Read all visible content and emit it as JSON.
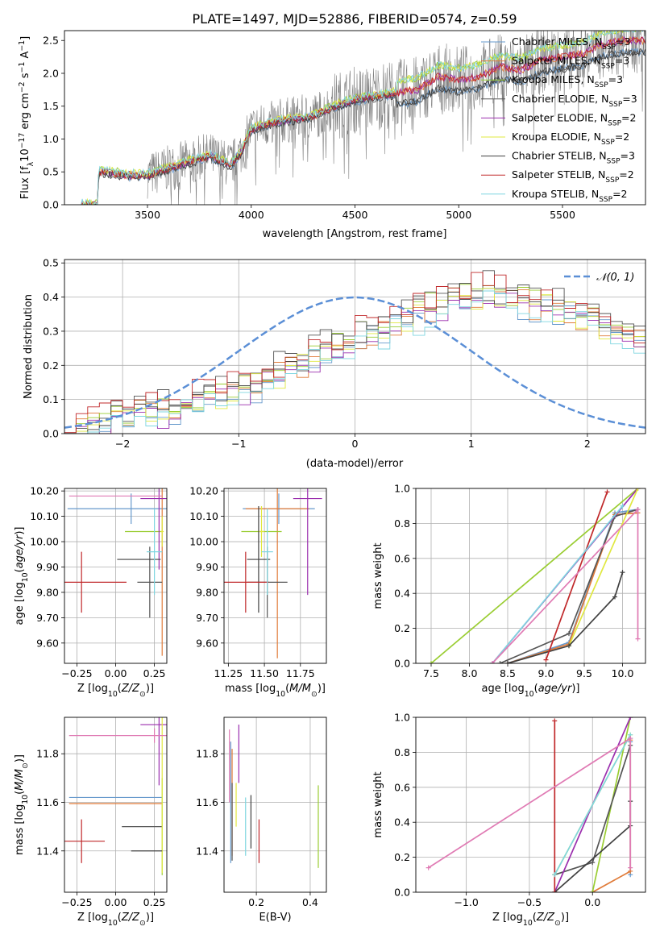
{
  "figure": {
    "title": "PLATE=1497, MJD=52886, FIBERID=0574, z=0.59"
  },
  "colors": {
    "grid": "#b0b0b0",
    "data_gray": "#808080",
    "normal_curve": "#5b8fd6",
    "models": [
      "#6699cc",
      "#e07b39",
      "#9acd32",
      "#555555",
      "#9b2fae",
      "#e0e840",
      "#404040",
      "#c0282a",
      "#7fd6e0"
    ]
  },
  "legend_spectrum": [
    {
      "label": "Chabrier MILES, N",
      "sub": "SSP",
      "tail": "=3",
      "color": "#6699cc"
    },
    {
      "label": "Salpeter MILES, N",
      "sub": "SSP",
      "tail": "=3",
      "color": "#e07b39"
    },
    {
      "label": "Kroupa MILES, N",
      "sub": "SSP",
      "tail": "=3",
      "color": "#9acd32"
    },
    {
      "label": "Chabrier ELODIE, N",
      "sub": "SSP",
      "tail": "=3",
      "color": "#555555"
    },
    {
      "label": "Salpeter ELODIE, N",
      "sub": "SSP",
      "tail": "=2",
      "color": "#9b2fae"
    },
    {
      "label": "Kroupa ELODIE, N",
      "sub": "SSP",
      "tail": "=2",
      "color": "#e0e840"
    },
    {
      "label": "Chabrier STELIB, N",
      "sub": "SSP",
      "tail": "=3",
      "color": "#404040"
    },
    {
      "label": "Salpeter STELIB, N",
      "sub": "SSP",
      "tail": "=2",
      "color": "#c0282a"
    },
    {
      "label": "Kroupa STELIB, N",
      "sub": "SSP",
      "tail": "=2",
      "color": "#7fd6e0"
    }
  ],
  "legend_hist": {
    "label": "𝒩(0, 1)"
  },
  "chart_data": [
    {
      "id": "spectrum",
      "type": "line",
      "title": "PLATE=1497, MJD=52886, FIBERID=0574, z=0.59",
      "xlabel": "wavelength [Angstrom, rest frame]",
      "ylabel": "Flux [fλ10⁻¹⁷ erg cm⁻² s⁻¹ A⁻¹]",
      "xlim": [
        3100,
        5900
      ],
      "ylim": [
        0,
        2.65
      ],
      "xticks": [
        3500,
        4000,
        4500,
        5000,
        5500
      ],
      "yticks": [
        0.0,
        0.5,
        1.0,
        1.5,
        2.0,
        2.5
      ],
      "grid": false,
      "legend_placement": "right",
      "data_start": 3500,
      "model_start": 3180,
      "continuum_points": [
        [
          3180,
          0
        ],
        [
          3260,
          0
        ],
        [
          3265,
          0.5
        ],
        [
          3300,
          0.5
        ],
        [
          3400,
          0.45
        ],
        [
          3500,
          0.45
        ],
        [
          3600,
          0.55
        ],
        [
          3700,
          0.65
        ],
        [
          3800,
          0.75
        ],
        [
          3900,
          0.6
        ],
        [
          3950,
          0.8
        ],
        [
          4000,
          1.15
        ],
        [
          4100,
          1.25
        ],
        [
          4200,
          1.3
        ],
        [
          4300,
          1.35
        ],
        [
          4400,
          1.5
        ],
        [
          4500,
          1.6
        ],
        [
          4600,
          1.65
        ],
        [
          4700,
          1.7
        ],
        [
          4800,
          1.75
        ],
        [
          4900,
          1.95
        ],
        [
          5000,
          1.9
        ],
        [
          5100,
          1.95
        ],
        [
          5200,
          2.1
        ],
        [
          5300,
          2.05
        ],
        [
          5400,
          2.2
        ],
        [
          5500,
          2.25
        ],
        [
          5600,
          2.3
        ],
        [
          5700,
          2.45
        ],
        [
          5800,
          2.5
        ]
      ]
    },
    {
      "id": "residual-hist",
      "type": "bar",
      "xlabel": "(data-model)/error",
      "ylabel": "Normed distribution",
      "xlim": [
        -2.5,
        2.5
      ],
      "ylim": [
        0,
        0.51
      ],
      "xticks": [
        -2,
        -1,
        0,
        1,
        2
      ],
      "yticks": [
        0.0,
        0.1,
        0.2,
        0.3,
        0.4,
        0.5
      ],
      "grid": true,
      "legend_placement": "top-right",
      "bin_width": 0.1,
      "bin_start": -2.5,
      "normal": {
        "mean": 0,
        "sigma": 1
      },
      "bin_values": [
        0.02,
        0.02,
        0.03,
        0.03,
        0.04,
        0.05,
        0.06,
        0.06,
        0.07,
        0.08,
        0.09,
        0.1,
        0.11,
        0.12,
        0.13,
        0.14,
        0.15,
        0.17,
        0.18,
        0.2,
        0.21,
        0.23,
        0.25,
        0.26,
        0.28,
        0.29,
        0.3,
        0.31,
        0.33,
        0.34,
        0.35,
        0.37,
        0.38,
        0.39,
        0.4,
        0.41,
        0.42,
        0.41,
        0.4,
        0.39,
        0.38,
        0.38,
        0.37,
        0.36,
        0.35,
        0.33,
        0.32,
        0.31,
        0.3,
        0.28,
        0.27,
        0.26,
        0.25,
        0.24,
        0.22,
        0.21,
        0.2,
        0.18,
        0.16,
        0.15,
        0.14,
        0.13,
        0.12,
        0.11,
        0.1,
        0.09,
        0.08,
        0.07,
        0.06,
        0.05,
        0.04,
        0.04,
        0.03,
        0.03,
        0.02
      ]
    },
    {
      "id": "age-vs-Z",
      "type": "scatter",
      "xlabel": "Z [log10(Z/Z⊙)]",
      "ylabel": "age  [log10(age/yr)]",
      "xlim": [
        -0.33,
        0.33
      ],
      "ylim": [
        9.52,
        10.21
      ],
      "xticks": [
        -0.25,
        0.0,
        0.25
      ],
      "yticks": [
        9.6,
        9.7,
        9.8,
        9.9,
        10.0,
        10.1,
        10.2
      ],
      "grid": true,
      "points": [
        {
          "x": 0.1,
          "y": 10.13,
          "xerr": 0.41,
          "yerr": 0.06,
          "c": 0
        },
        {
          "x": 0.3,
          "y": 10.17,
          "xerr": 0.01,
          "yerr": 0.62,
          "c": 1
        },
        {
          "x": 0.18,
          "y": 10.04,
          "xerr": 0.12,
          "yerr": 0.0,
          "c": 2
        },
        {
          "x": 0.22,
          "y": 9.84,
          "xerr": 0.08,
          "yerr": 0.14,
          "c": 3
        },
        {
          "x": 0.28,
          "y": 10.17,
          "xerr": 0.12,
          "yerr": 0.28,
          "c": 4
        },
        {
          "x": 0.3,
          "y": 10.04,
          "xerr": 0.01,
          "yerr": 0.06,
          "c": 5
        },
        {
          "x": 0.15,
          "y": 9.93,
          "xerr": 0.14,
          "yerr": 0.0,
          "c": 6
        },
        {
          "x": -0.22,
          "y": 9.84,
          "xerr": 0.29,
          "yerr": 0.12,
          "c": 7
        },
        {
          "x": 0.25,
          "y": 9.96,
          "xerr": 0.05,
          "yerr": 0.17,
          "c": 8
        },
        {
          "x": 0.0,
          "y": 10.18,
          "xerr": 0.3,
          "yerr": 0.0,
          "c": 9
        }
      ]
    },
    {
      "id": "age-vs-mass",
      "type": "scatter",
      "xlabel": "mass [log10(M/M⊙)]",
      "ylabel": "",
      "xlim": [
        11.22,
        11.93
      ],
      "ylim": [
        9.52,
        10.21
      ],
      "xticks": [
        11.25,
        11.5,
        11.75
      ],
      "yticks": [
        9.6,
        9.7,
        9.8,
        9.9,
        10.0,
        10.1,
        10.2
      ],
      "grid": true,
      "points": [
        {
          "x": 11.6,
          "y": 10.13,
          "xerr": 0.25,
          "yerr": 0.06,
          "c": 0
        },
        {
          "x": 11.59,
          "y": 10.13,
          "xerr": 0.22,
          "yerr": 0.59,
          "c": 1
        },
        {
          "x": 11.48,
          "y": 10.04,
          "xerr": 0.14,
          "yerr": 0.0,
          "c": 2
        },
        {
          "x": 11.52,
          "y": 9.84,
          "xerr": 0.14,
          "yerr": 0.14,
          "c": 3
        },
        {
          "x": 11.8,
          "y": 10.17,
          "xerr": 0.1,
          "yerr": 0.38,
          "c": 4
        },
        {
          "x": 11.48,
          "y": 10.04,
          "xerr": 0.02,
          "yerr": 0.1,
          "c": 5
        },
        {
          "x": 11.46,
          "y": 9.93,
          "xerr": 0.08,
          "yerr": 0.21,
          "c": 6
        },
        {
          "x": 11.37,
          "y": 9.84,
          "xerr": 0.16,
          "yerr": 0.12,
          "c": 7
        },
        {
          "x": 11.52,
          "y": 9.96,
          "xerr": 0.04,
          "yerr": 0.17,
          "c": 8
        }
      ]
    },
    {
      "id": "mass-weight-vs-age",
      "type": "line",
      "xlabel": "age  [log10(age/yr)]",
      "ylabel": "mass weight",
      "xlim": [
        7.3,
        10.3
      ],
      "ylim": [
        0,
        1
      ],
      "xticks": [
        7.5,
        8.0,
        8.5,
        9.0,
        9.5,
        10.0
      ],
      "yticks": [
        0.0,
        0.2,
        0.4,
        0.6,
        0.8,
        1.0
      ],
      "grid": true,
      "series": [
        {
          "c": 0,
          "x": [
            8.5,
            9.3,
            9.9,
            10.2
          ],
          "y": [
            0.0,
            0.12,
            0.86,
            0.88
          ]
        },
        {
          "c": 1,
          "x": [
            8.5,
            9.3,
            9.9,
            10.2
          ],
          "y": [
            0.0,
            0.11,
            0.85,
            0.86
          ]
        },
        {
          "c": 2,
          "x": [
            7.5,
            10.2
          ],
          "y": [
            0.0,
            1.0
          ]
        },
        {
          "c": 3,
          "x": [
            8.4,
            9.3,
            9.9,
            10.2
          ],
          "y": [
            0.0,
            0.17,
            0.84,
            0.88
          ]
        },
        {
          "c": 4,
          "x": [
            8.3,
            10.2
          ],
          "y": [
            0.0,
            1.0
          ]
        },
        {
          "c": 5,
          "x": [
            9.3,
            10.2
          ],
          "y": [
            0.1,
            1.0
          ]
        },
        {
          "c": 6,
          "x": [
            8.5,
            9.3,
            9.9,
            10.0
          ],
          "y": [
            0.0,
            0.1,
            0.38,
            0.52
          ]
        },
        {
          "c": 7,
          "x": [
            9.0,
            9.8
          ],
          "y": [
            0.02,
            0.98
          ]
        },
        {
          "c": 8,
          "x": [
            8.3,
            10.0
          ],
          "y": [
            0.0,
            0.9
          ]
        },
        {
          "c": 9,
          "x": [
            8.3,
            10.2,
            10.2
          ],
          "y": [
            0.0,
            0.88,
            0.14
          ]
        }
      ]
    },
    {
      "id": "mass-vs-Z",
      "type": "scatter",
      "xlabel": "Z [log10(Z/Z⊙)]",
      "ylabel": "mass [log10(M/M⊙)]",
      "xlim": [
        -0.33,
        0.33
      ],
      "ylim": [
        11.23,
        11.95
      ],
      "xticks": [
        -0.25,
        0.0,
        0.25
      ],
      "yticks": [
        11.4,
        11.6,
        11.8
      ],
      "grid": true,
      "points": [
        {
          "x": 0.0,
          "y": 11.62,
          "xerr": 0.3,
          "yerr": 0.0,
          "c": 0
        },
        {
          "x": 0.0,
          "y": 11.595,
          "xerr": 0.3,
          "yerr": 0.0,
          "c": 1
        },
        {
          "x": 0.3,
          "y": 11.5,
          "xerr": 0.0,
          "yerr": 0.2,
          "c": 2
        },
        {
          "x": 0.17,
          "y": 11.5,
          "xerr": 0.13,
          "yerr": 0.0,
          "c": 3
        },
        {
          "x": 0.28,
          "y": 11.92,
          "xerr": 0.12,
          "yerr": 0.25,
          "c": 4
        },
        {
          "x": 0.3,
          "y": 11.66,
          "xerr": 0.0,
          "yerr": 0.35,
          "c": 5
        },
        {
          "x": 0.2,
          "y": 11.4,
          "xerr": 0.1,
          "yerr": 0.0,
          "c": 6
        },
        {
          "x": -0.22,
          "y": 11.44,
          "xerr": 0.15,
          "yerr": 0.09,
          "c": 7
        },
        {
          "x": 0.25,
          "y": 11.875,
          "xerr": 0.55,
          "yerr": 0.03,
          "c": 9
        }
      ]
    },
    {
      "id": "mass-vs-EBV",
      "type": "scatter",
      "xlabel": "E(B-V)",
      "ylabel": "",
      "xlim": [
        0.08,
        0.46
      ],
      "ylim": [
        11.23,
        11.95
      ],
      "xticks": [
        0.2,
        0.4
      ],
      "yticks": [
        11.4,
        11.6,
        11.8
      ],
      "grid": true,
      "points": [
        {
          "x": 0.105,
          "y": 11.6,
          "yerr": 0.25,
          "c": 0
        },
        {
          "x": 0.11,
          "y": 11.6,
          "yerr": 0.22,
          "c": 1
        },
        {
          "x": 0.43,
          "y": 11.5,
          "yerr": 0.17,
          "c": 2
        },
        {
          "x": 0.11,
          "y": 11.52,
          "yerr": 0.16,
          "c": 3
        },
        {
          "x": 0.135,
          "y": 11.8,
          "yerr": 0.12,
          "c": 4
        },
        {
          "x": 0.125,
          "y": 11.59,
          "yerr": 0.09,
          "c": 5
        },
        {
          "x": 0.18,
          "y": 11.52,
          "yerr": 0.11,
          "c": 6
        },
        {
          "x": 0.21,
          "y": 11.44,
          "yerr": 0.09,
          "c": 7
        },
        {
          "x": 0.16,
          "y": 11.5,
          "yerr": 0.12,
          "c": 8
        },
        {
          "x": 0.1,
          "y": 11.75,
          "yerr": 0.15,
          "c": 9
        }
      ]
    },
    {
      "id": "mass-weight-vs-Z",
      "type": "line",
      "xlabel": "Z [log10(Z/Z⊙)]",
      "ylabel": "mass weight",
      "xlim": [
        -1.4,
        0.42
      ],
      "ylim": [
        0,
        1
      ],
      "xticks": [
        -1.0,
        -0.5,
        0.0
      ],
      "yticks": [
        0.0,
        0.2,
        0.4,
        0.6,
        0.8,
        1.0
      ],
      "grid": true,
      "series": [
        {
          "c": 0,
          "x": [
            0.3,
            0.3,
            0.3
          ],
          "y": [
            0.1,
            0.86,
            0.88
          ]
        },
        {
          "c": 1,
          "x": [
            0.0,
            0.3,
            0.3
          ],
          "y": [
            0.0,
            0.12,
            0.87
          ]
        },
        {
          "c": 2,
          "x": [
            0.0,
            0.3
          ],
          "y": [
            0.0,
            1.0
          ]
        },
        {
          "c": 3,
          "x": [
            -0.3,
            0.0,
            0.3
          ],
          "y": [
            0.1,
            0.17,
            0.84
          ]
        },
        {
          "c": 4,
          "x": [
            -0.3,
            0.3
          ],
          "y": [
            0.0,
            1.0
          ]
        },
        {
          "c": 5,
          "x": [
            -0.3,
            0.3
          ],
          "y": [
            0.1,
            0.9
          ]
        },
        {
          "c": 6,
          "x": [
            -0.3,
            0.3,
            0.3
          ],
          "y": [
            0.0,
            0.38,
            0.52
          ]
        },
        {
          "c": 7,
          "x": [
            -0.3,
            -0.3
          ],
          "y": [
            0.0,
            0.98
          ]
        },
        {
          "c": 8,
          "x": [
            -0.3,
            0.3
          ],
          "y": [
            0.1,
            0.9
          ]
        },
        {
          "c": 9,
          "x": [
            -1.3,
            0.3,
            0.3
          ],
          "y": [
            0.14,
            0.88,
            0.14
          ]
        }
      ]
    }
  ]
}
